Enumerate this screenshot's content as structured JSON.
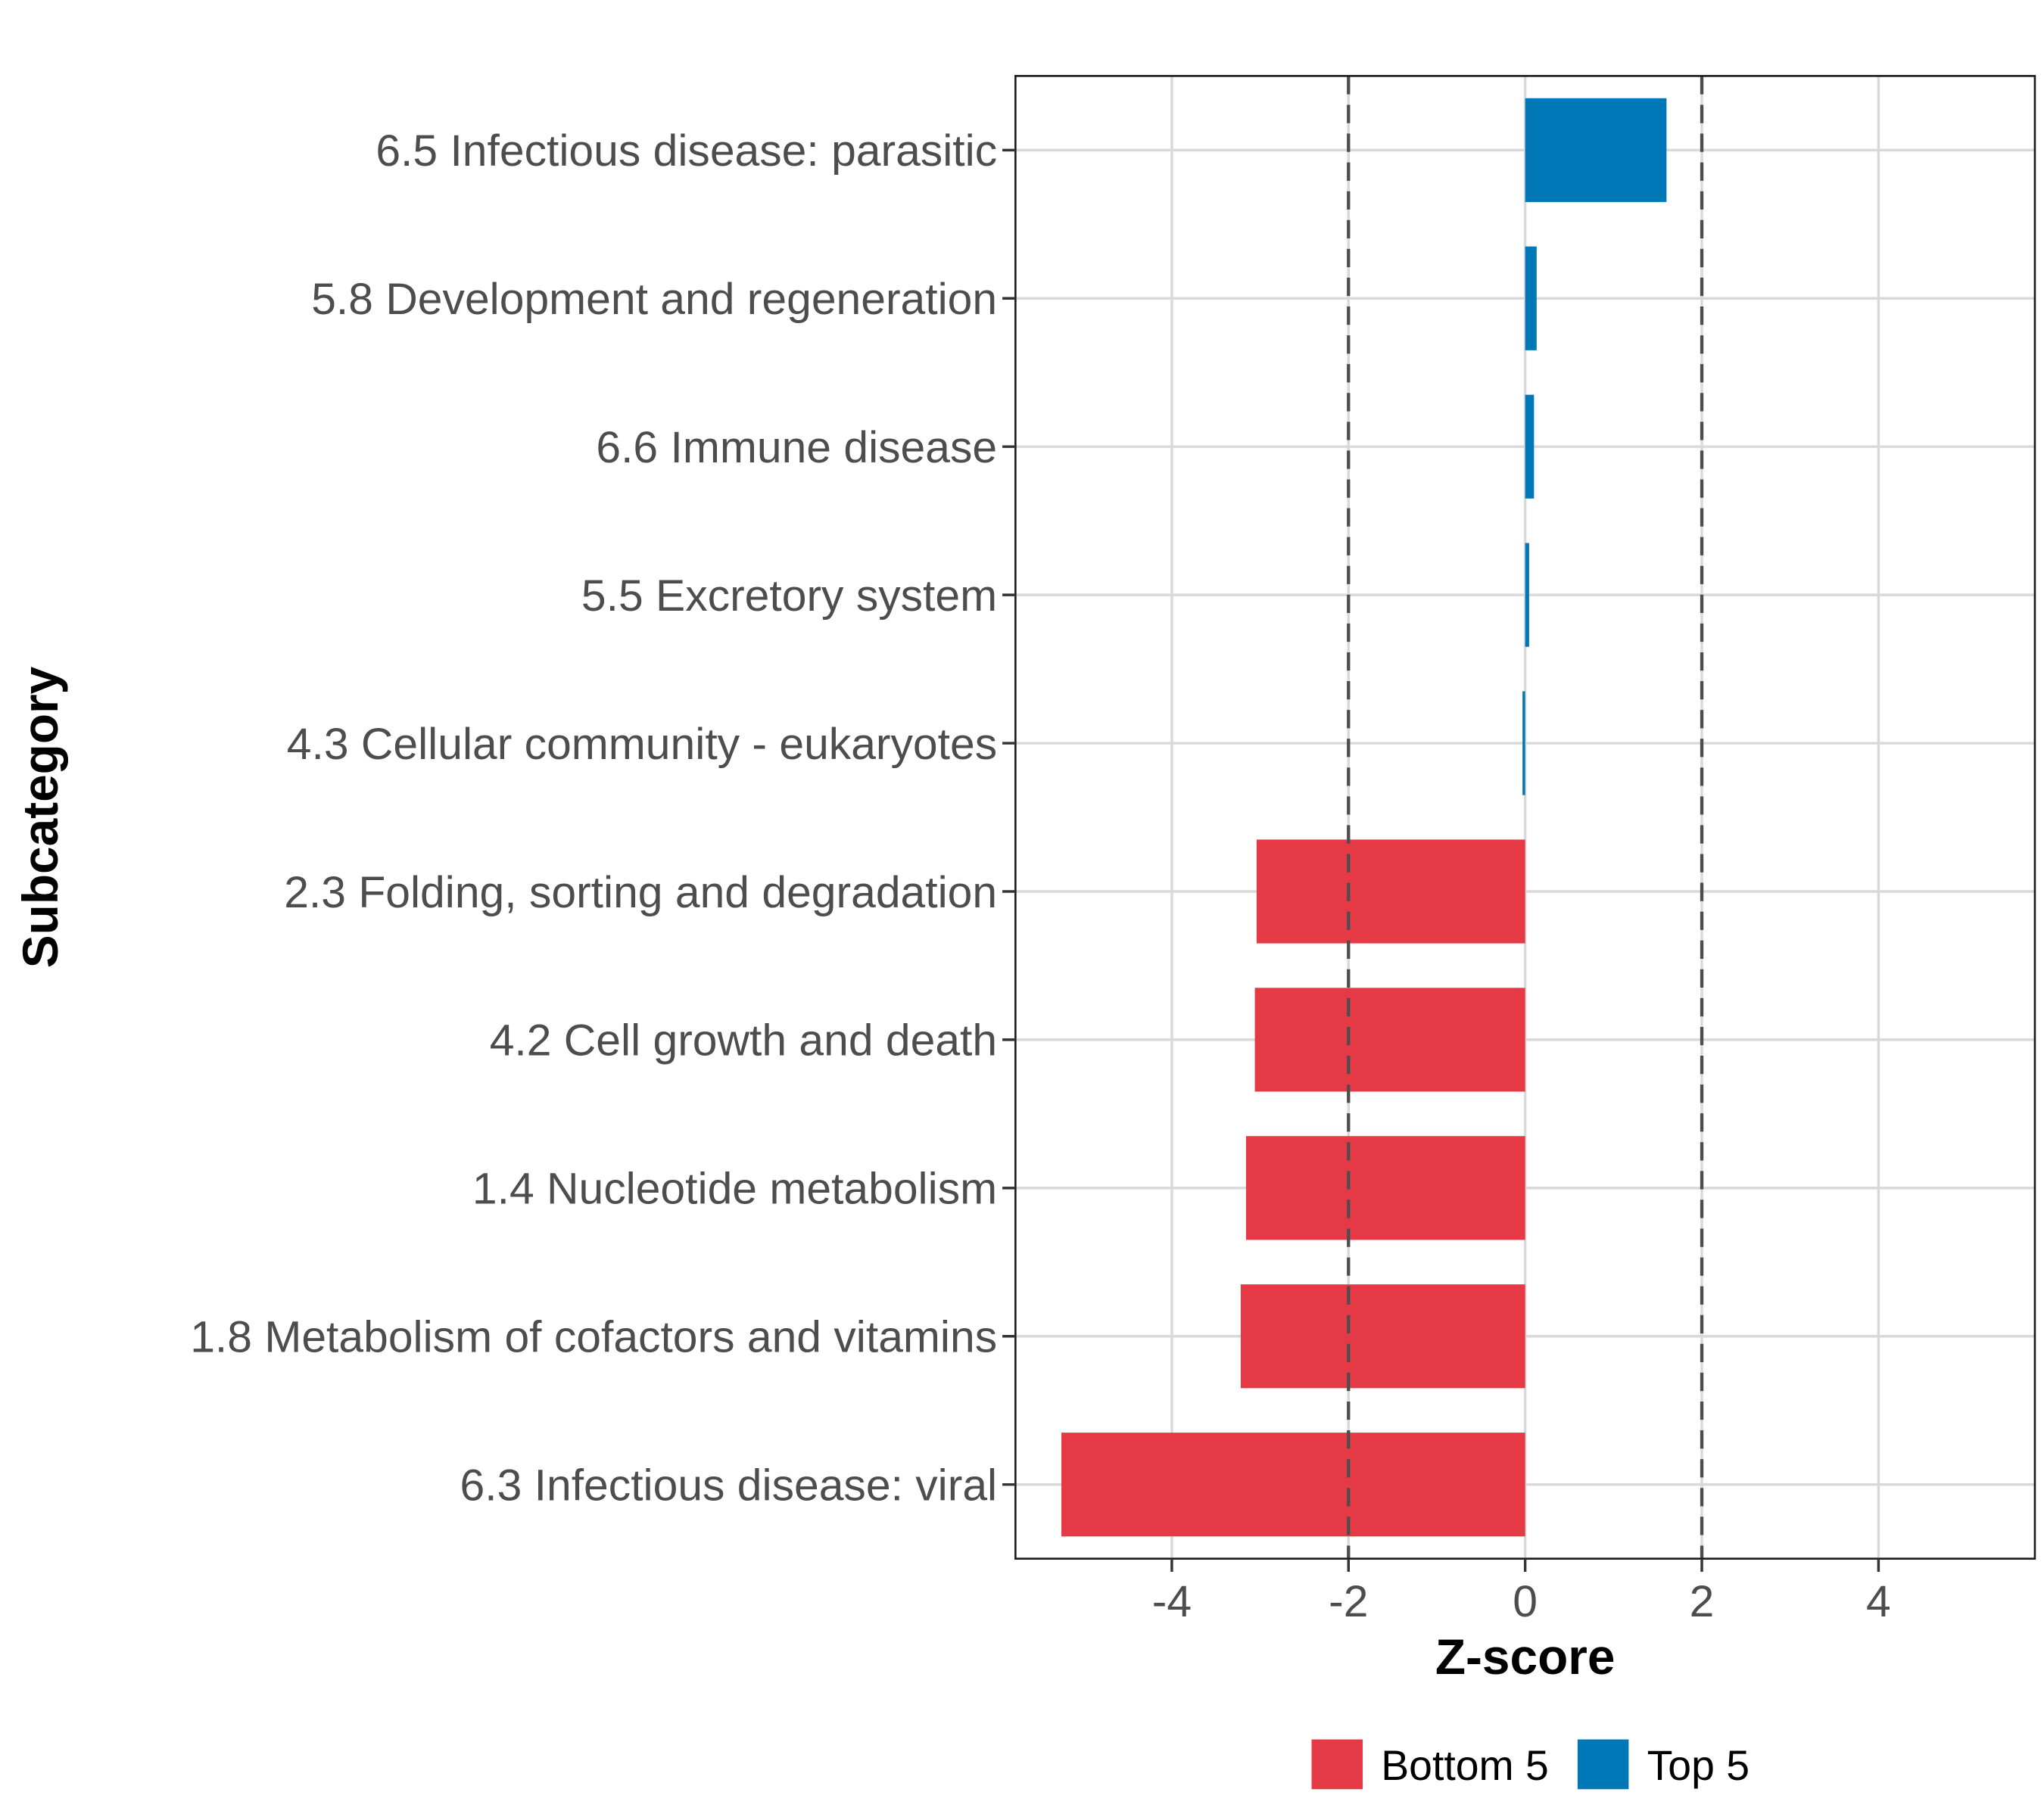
{
  "chart_data": {
    "type": "bar",
    "orientation": "horizontal",
    "title": "",
    "xlabel": "Z-score",
    "ylabel": "Subcategory",
    "xlim": [
      -5.77,
      5.77
    ],
    "xticks": [
      -4,
      -2,
      0,
      2,
      4
    ],
    "xtick_labels": [
      "-4",
      "-2",
      "0",
      "2",
      "4"
    ],
    "reference_lines": [
      -2,
      2
    ],
    "grid": true,
    "categories": [
      "6.5 Infectious disease: parasitic",
      "5.8 Development and regeneration",
      "6.6 Immune disease",
      "5.5 Excretory system",
      "4.3 Cellular community - eukaryotes",
      "2.3 Folding, sorting and degradation",
      "4.2 Cell growth and death",
      "1.4 Nucleotide metabolism",
      "1.8 Metabolism of cofactors and vitamins",
      "6.3 Infectious disease: viral"
    ],
    "values": [
      1.6,
      0.13,
      0.1,
      0.045,
      -0.03,
      -3.04,
      -3.06,
      -3.16,
      -3.22,
      -5.25
    ],
    "groups": [
      "Top 5",
      "Top 5",
      "Top 5",
      "Top 5",
      "Top 5",
      "Bottom 5",
      "Bottom 5",
      "Bottom 5",
      "Bottom 5",
      "Bottom 5"
    ],
    "legend": {
      "position": "bottom",
      "entries": [
        {
          "name": "Bottom 5",
          "color": "#e63946"
        },
        {
          "name": "Top 5",
          "color": "#0077b6"
        }
      ]
    },
    "colors": {
      "Bottom 5": "#e63946",
      "Top 5": "#0077b6"
    }
  }
}
